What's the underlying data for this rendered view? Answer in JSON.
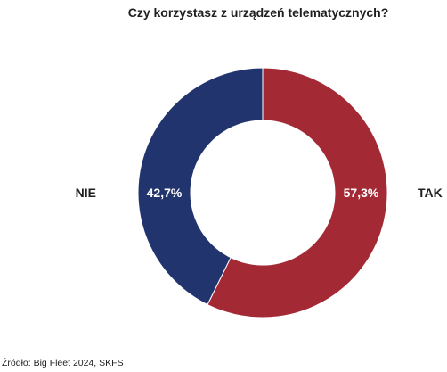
{
  "chart_data": {
    "type": "pie",
    "title": "Czy korzystasz z urządzeń telematycznych?",
    "slices": [
      {
        "label": "TAK",
        "value": 57.3,
        "value_label": "57,3%",
        "color": "#a32a35"
      },
      {
        "label": "NIE",
        "value": 42.7,
        "value_label": "42,7%",
        "color": "#22346e"
      }
    ],
    "legend": "none",
    "source": "Źródło: Big Fleet 2024, SKFS"
  }
}
